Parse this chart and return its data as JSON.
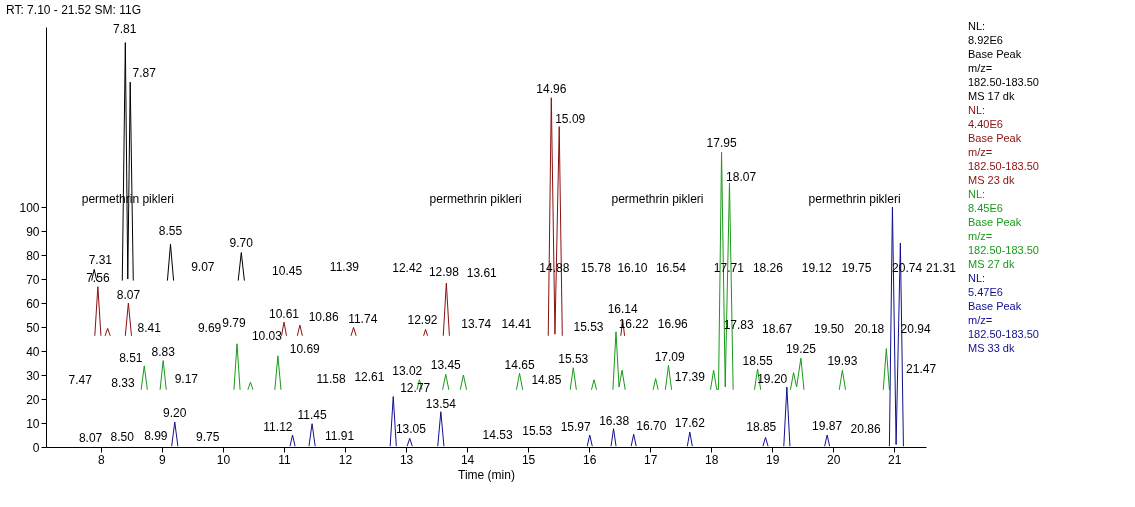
{
  "chart_data": {
    "type": "line",
    "title": "RT: 7.10 - 21.52   SM: 11G",
    "xlabel": "Time (min)",
    "xlim": [
      7.1,
      21.52
    ],
    "ylim": [
      0,
      175
    ],
    "xticks": [
      8,
      9,
      10,
      11,
      12,
      13,
      14,
      15,
      16,
      17,
      18,
      19,
      20,
      21
    ],
    "yticks": [
      0,
      10,
      20,
      30,
      40,
      50,
      60,
      70,
      80,
      90,
      100
    ],
    "series": [
      {
        "name": "NL:\n8.92E6\nBase Peak\nm/z=\n182.50-183.50\nMS 17 dk",
        "color": "#000000",
        "x": [
          7.85,
          7.89,
          7.93,
          8.1,
          8.35,
          8.4,
          8.44,
          8.48,
          8.53,
          8.8,
          9.09,
          9.14,
          9.19,
          9.7,
          10.25,
          10.3,
          10.35
        ],
        "values": [
          69.5,
          74,
          69.5,
          null,
          69.5,
          168.5,
          70,
          152,
          69.5,
          null,
          69.5,
          84.5,
          69.5,
          null,
          69.5,
          81,
          69.5
        ]
      },
      {
        "name": "NL:\n4.40E6\nBase Peak\nm/z=\n182.50-183.50\nMS 23 dk",
        "color": "#8b1010",
        "x": [
          7.9,
          7.95,
          8.0,
          8.03,
          8.07,
          8.11,
          8.15,
          8.3,
          8.4,
          8.45,
          8.5,
          9.5,
          10.96,
          11.0,
          11.04,
          11.13,
          11.22,
          11.26,
          11.3,
          11.7,
          12.1,
          12.14,
          12.18,
          12.7,
          13.29,
          13.32,
          13.35,
          13.5,
          13.61,
          13.66,
          13.71,
          14.5,
          15.33,
          15.38,
          15.44,
          15.51,
          15.56,
          16.0,
          16.52,
          16.55,
          16.58
        ],
        "values": [
          46.5,
          66.8,
          46.5,
          null,
          46.5,
          49.4,
          46.5,
          null,
          46.5,
          60,
          46.5,
          null,
          46.5,
          52,
          46.5,
          null,
          46.5,
          50.8,
          46.5,
          null,
          46.5,
          49.8,
          46.5,
          null,
          46.5,
          49,
          46.5,
          null,
          46.5,
          68.3,
          46.5,
          null,
          46.5,
          145.5,
          47,
          133.5,
          46.5,
          null,
          46.5,
          53,
          46.5
        ]
      },
      {
        "name": "NL:\n8.45E6\nBase Peak\nm/z=\n182.50-183.50\nMS 27 dk",
        "color": "#1a9a1a",
        "x": [
          8.66,
          8.71,
          8.76,
          8.9,
          8.97,
          9.02,
          9.07,
          9.5,
          10.18,
          10.23,
          10.28,
          10.35,
          10.41,
          10.45,
          10.49,
          10.7,
          10.85,
          10.9,
          10.95,
          12.0,
          13.18,
          13.22,
          13.26,
          13.4,
          13.6,
          13.65,
          13.7,
          13.8,
          13.89,
          13.94,
          13.99,
          14.4,
          14.81,
          14.86,
          14.91,
          15.3,
          15.69,
          15.74,
          15.79,
          15.9,
          16.04,
          16.08,
          16.12,
          16.25,
          16.39,
          16.44,
          16.49,
          16.54,
          16.59,
          16.8,
          17.05,
          17.09,
          17.13,
          17.2,
          17.25,
          17.3,
          17.35,
          17.6,
          17.99,
          18.04,
          18.09,
          18.12,
          18.17,
          18.23,
          18.3,
          18.36,
          18.5,
          18.71,
          18.76,
          18.81,
          19.0,
          19.3,
          19.35,
          19.4,
          19.47,
          19.52,
          19.8,
          20.1,
          20.15,
          20.2,
          20.5,
          20.82,
          20.87,
          20.92
        ],
        "values": [
          24,
          33.8,
          24,
          null,
          24,
          36,
          24,
          null,
          24,
          43,
          24,
          null,
          24,
          27,
          24,
          null,
          24,
          38,
          24,
          null,
          24,
          28,
          24,
          null,
          24,
          30.3,
          24,
          null,
          24,
          30,
          24,
          null,
          24,
          30.7,
          24,
          null,
          24,
          33,
          24,
          null,
          24,
          28,
          24,
          null,
          24,
          48,
          25,
          32,
          24,
          null,
          24,
          28.5,
          24,
          null,
          24,
          34,
          24,
          null,
          24,
          32,
          24,
          24,
          122.8,
          25,
          110,
          24,
          null,
          24,
          32.5,
          24,
          null,
          24,
          31,
          25,
          37,
          24,
          null,
          24,
          32,
          24,
          null,
          24,
          41,
          24
        ]
      },
      {
        "name": "NL:\n5.47E6\nBase Peak\nm/z=\n182.50-183.50\nMS 33 dk",
        "color": "#10108f",
        "x": [
          9.16,
          9.21,
          9.26,
          10.0,
          11.1,
          11.14,
          11.18,
          11.3,
          11.41,
          11.46,
          11.51,
          12.0,
          12.74,
          12.79,
          12.84,
          12.95,
          13.02,
          13.06,
          13.1,
          13.3,
          13.52,
          13.57,
          13.62,
          15.0,
          15.97,
          16.01,
          16.05,
          16.2,
          16.36,
          16.4,
          16.44,
          16.6,
          16.69,
          16.73,
          16.77,
          17.2,
          17.61,
          17.65,
          17.69,
          18.3,
          18.85,
          18.89,
          18.93,
          19.05,
          19.19,
          19.24,
          19.29,
          19.6,
          19.86,
          19.9,
          19.94,
          20.4,
          20.92,
          20.97,
          21.03,
          21.1,
          21.15
        ],
        "values": [
          0.5,
          10.4,
          0.5,
          null,
          0.5,
          5,
          0.5,
          null,
          0.5,
          9.7,
          0.5,
          null,
          0.5,
          21,
          0.5,
          null,
          0.5,
          3.6,
          0.5,
          null,
          0.5,
          14.7,
          0.5,
          null,
          0.5,
          5,
          0.5,
          null,
          0.5,
          7.6,
          0.5,
          null,
          0.5,
          5.3,
          0.5,
          null,
          0.5,
          6.2,
          0.5,
          null,
          0.5,
          4,
          0.5,
          null,
          0.5,
          25,
          0.5,
          null,
          0.5,
          5,
          0.5,
          null,
          0.5,
          100,
          1,
          85,
          0.5
        ]
      }
    ],
    "annotations": [
      "7.81",
      "7.87",
      "7.31",
      "8.55",
      "9.07",
      "9.70",
      "10.45",
      "11.39",
      "12.42",
      "12.98",
      "13.61",
      "14.96",
      "15.09",
      "14.88",
      "15.78",
      "16.10",
      "16.54",
      "17.95",
      "18.07",
      "17.71",
      "18.26",
      "19.12",
      "19.75",
      "20.74",
      "21.31",
      "7.56",
      "8.07",
      "8.41",
      "9.69",
      "9.79",
      "10.03",
      "10.61",
      "10.86",
      "11.74",
      "12.92",
      "13.74",
      "14.41",
      "15.53",
      "16.14",
      "16.22",
      "16.96",
      "17.83",
      "18.67",
      "19.50",
      "20.18",
      "20.94",
      "7.47",
      "8.51",
      "8.83",
      "8.33",
      "9.17",
      "10.69",
      "11.58",
      "12.61",
      "13.02",
      "12.77",
      "13.45",
      "14.65",
      "14.85",
      "15.53",
      "17.09",
      "17.39",
      "18.55",
      "19.25",
      "19.20",
      "19.93",
      "21.47",
      "8.07",
      "8.50",
      "8.99",
      "9.20",
      "9.75",
      "11.12",
      "11.45",
      "11.91",
      "13.05",
      "13.54",
      "14.53",
      "15.53",
      "15.97",
      "16.38",
      "16.70",
      "17.62",
      "18.85",
      "19.87",
      "20.86",
      "permethrin pikleri",
      "permethrin pikleri",
      "permethrin pikleri",
      "permethrin pikleri"
    ]
  }
}
